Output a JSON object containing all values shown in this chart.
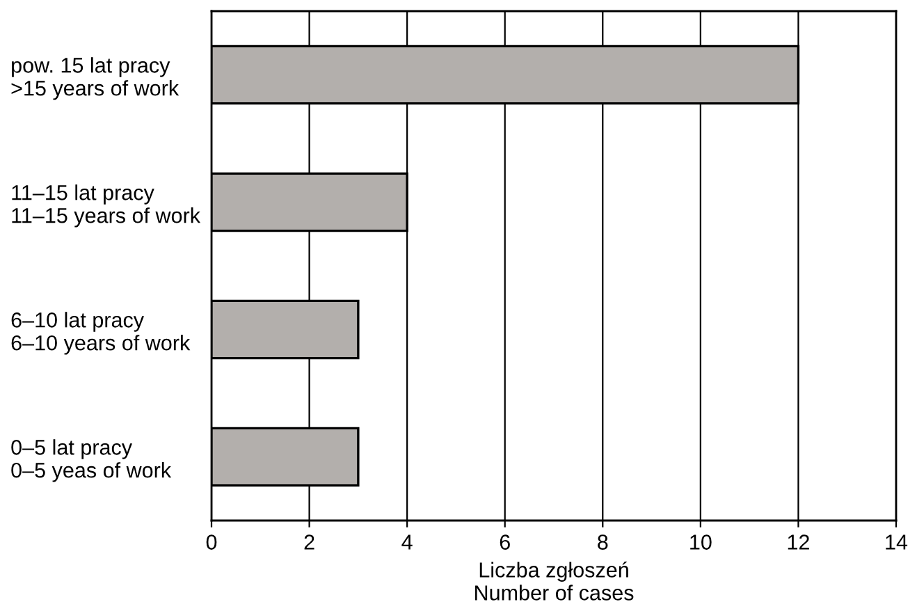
{
  "chart_data": {
    "type": "bar",
    "orientation": "horizontal",
    "categories": [
      "pow. 15 lat pracy\n>15 years of work",
      "11–15 lat pracy\n11–15 years of work",
      "6–10 lat pracy\n6–10 years of work",
      "0–5 lat pracy\n0–5 yeas of work"
    ],
    "values": [
      12,
      4,
      3,
      3
    ],
    "color": "#b3afac",
    "xlim": [
      0,
      14
    ],
    "xticks": [
      0,
      2,
      4,
      6,
      8,
      10,
      12,
      14
    ],
    "grid": "x",
    "xlabel": "Liczba zgłoszeń\nNumber of cases"
  }
}
